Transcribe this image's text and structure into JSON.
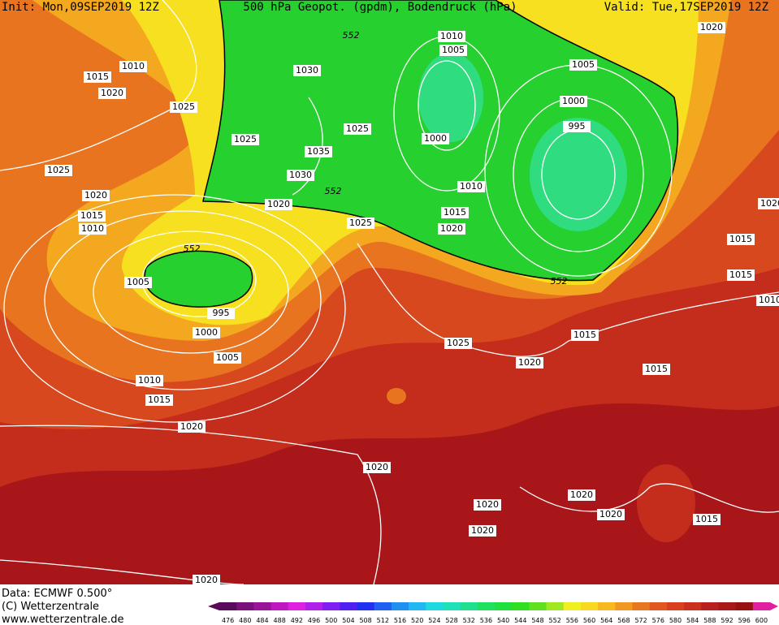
{
  "header": {
    "init": "Init: Mon,09SEP2019 12Z",
    "title": "500 hPa Geopot. (gpdm), Bodendruck (hPa)",
    "valid": "Valid: Tue,17SEP2019 12Z"
  },
  "isobar_labels": [
    1010,
    1005,
    552,
    1030,
    1010,
    1015,
    1020,
    1025,
    1005,
    1000,
    995,
    1000,
    1025,
    1025,
    1035,
    1030,
    1025,
    1020,
    1015,
    1010,
    552,
    1020,
    1010,
    1015,
    1025,
    1020,
    552,
    1005,
    995,
    1000,
    1005,
    1010,
    1015,
    1020,
    1025,
    1020,
    1015,
    1015,
    1015,
    1015,
    1010,
    1020,
    1020,
    552,
    1020,
    1020,
    1020,
    1020,
    1020,
    1015,
    1020
  ],
  "footer": {
    "data": "Data: ECMWF   0.500°",
    "copyright": "(C) Wetterzentrale",
    "url": "www.wetterzentrale.de"
  },
  "colorbar": {
    "ticks": [
      476,
      480,
      484,
      488,
      492,
      496,
      500,
      504,
      508,
      512,
      516,
      520,
      524,
      528,
      532,
      536,
      540,
      544,
      548,
      552,
      556,
      560,
      564,
      568,
      572,
      576,
      580,
      584,
      588,
      592,
      596,
      600
    ],
    "colors": [
      "#5a0a5a",
      "#7a107a",
      "#9a149a",
      "#c018c0",
      "#e020e0",
      "#b020e8",
      "#8020f0",
      "#5020f0",
      "#2030f0",
      "#2060f0",
      "#2090f0",
      "#20b8f0",
      "#20d8e0",
      "#20e0b8",
      "#20e090",
      "#20e060",
      "#20e040",
      "#30e020",
      "#60e020",
      "#a0e820",
      "#f0f020",
      "#f8d820",
      "#f8b820",
      "#f09820",
      "#e87820",
      "#e05820",
      "#d84020",
      "#c83020",
      "#b82020",
      "#a81818",
      "#981010",
      "#e020a0"
    ]
  }
}
